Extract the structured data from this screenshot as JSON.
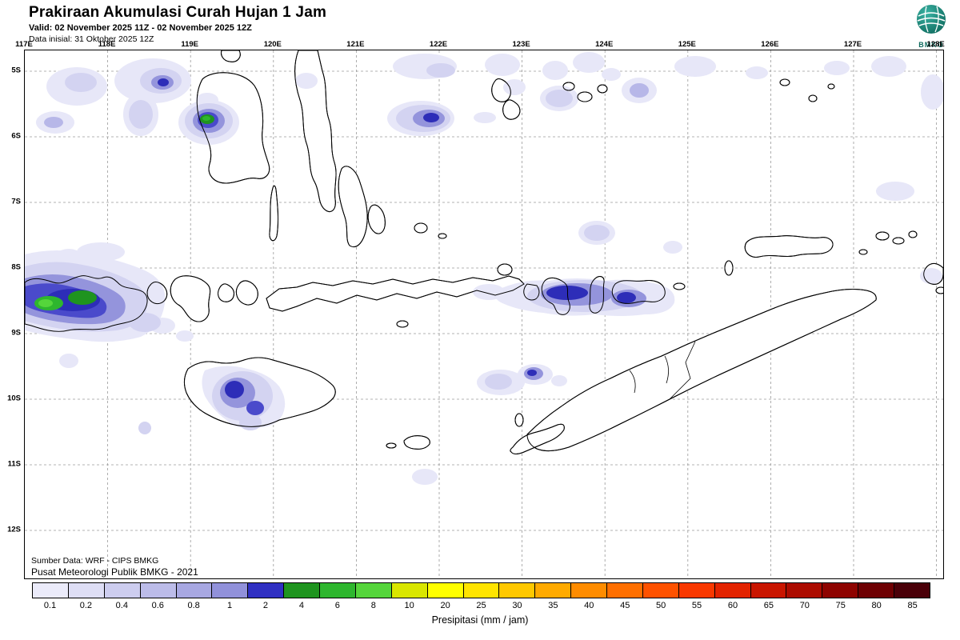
{
  "header": {
    "title": "Prakiraan Akumulasi Curah Hujan 1 Jam",
    "valid_line": "Valid: 02 November 2025 11Z - 02 November 2025 12Z",
    "init_line": "Data inisial: 31 Oktober 2025 12Z",
    "logo_text": "BMKG"
  },
  "map": {
    "lon_labels": [
      "117E",
      "118E",
      "119E",
      "120E",
      "121E",
      "122E",
      "123E",
      "124E",
      "125E",
      "126E",
      "127E",
      "128E"
    ],
    "lat_labels": [
      "5S",
      "6S",
      "7S",
      "8S",
      "9S",
      "10S",
      "11S",
      "12S"
    ],
    "source_line1": "Sumber Data: WRF - CIPS BMKG",
    "source_line2": "Pusat Meteorologi Publik BMKG - 2021"
  },
  "legend": {
    "title": "Presipitasi (mm / jam)",
    "entries": [
      {
        "value": "0.1",
        "color": "#EBEBFA"
      },
      {
        "value": "0.2",
        "color": "#DEDEF5"
      },
      {
        "value": "0.4",
        "color": "#CDCDEF"
      },
      {
        "value": "0.6",
        "color": "#BCBCE9"
      },
      {
        "value": "0.8",
        "color": "#A8A8E2"
      },
      {
        "value": "1",
        "color": "#9191DA"
      },
      {
        "value": "2",
        "color": "#3030C2"
      },
      {
        "value": "4",
        "color": "#1F941F"
      },
      {
        "value": "6",
        "color": "#2EB62E"
      },
      {
        "value": "8",
        "color": "#55D53B"
      },
      {
        "value": "10",
        "color": "#D9E600"
      },
      {
        "value": "20",
        "color": "#FFFF00"
      },
      {
        "value": "25",
        "color": "#FFE400"
      },
      {
        "value": "30",
        "color": "#FFC800"
      },
      {
        "value": "35",
        "color": "#FFAA00"
      },
      {
        "value": "40",
        "color": "#FF8C00"
      },
      {
        "value": "45",
        "color": "#FF6F00"
      },
      {
        "value": "50",
        "color": "#FF5200"
      },
      {
        "value": "55",
        "color": "#F93800"
      },
      {
        "value": "60",
        "color": "#E32300"
      },
      {
        "value": "65",
        "color": "#C91500"
      },
      {
        "value": "70",
        "color": "#AC0B00"
      },
      {
        "value": "75",
        "color": "#8E0300"
      },
      {
        "value": "80",
        "color": "#6E0002"
      },
      {
        "value": "85",
        "color": "#4A0008"
      }
    ]
  }
}
